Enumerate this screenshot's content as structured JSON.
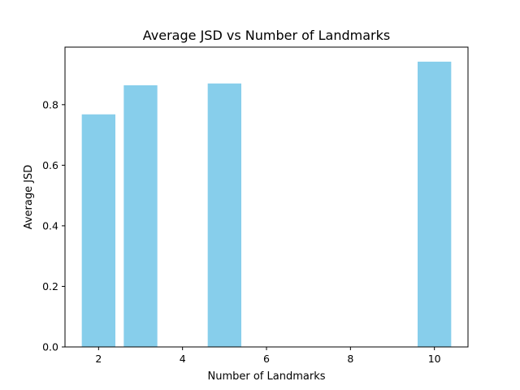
{
  "chart_data": {
    "type": "bar",
    "title": "Average JSD vs Number of Landmarks",
    "xlabel": "Number of Landmarks",
    "ylabel": "Average JSD",
    "x": [
      2,
      3,
      5,
      10
    ],
    "values": [
      0.768,
      0.864,
      0.87,
      0.942
    ],
    "bar_width": 0.8,
    "xlim": [
      1.2,
      10.8
    ],
    "ylim": [
      0.0,
      0.99
    ],
    "xticks": [
      2,
      4,
      6,
      8,
      10
    ],
    "yticks": [
      0.0,
      0.2,
      0.4,
      0.6,
      0.8
    ],
    "xtick_labels": [
      "2",
      "4",
      "6",
      "8",
      "10"
    ],
    "ytick_labels": [
      "0.0",
      "0.2",
      "0.4",
      "0.6",
      "0.8"
    ],
    "bar_color": "#87ceeb",
    "grid": false,
    "legend": "none"
  }
}
